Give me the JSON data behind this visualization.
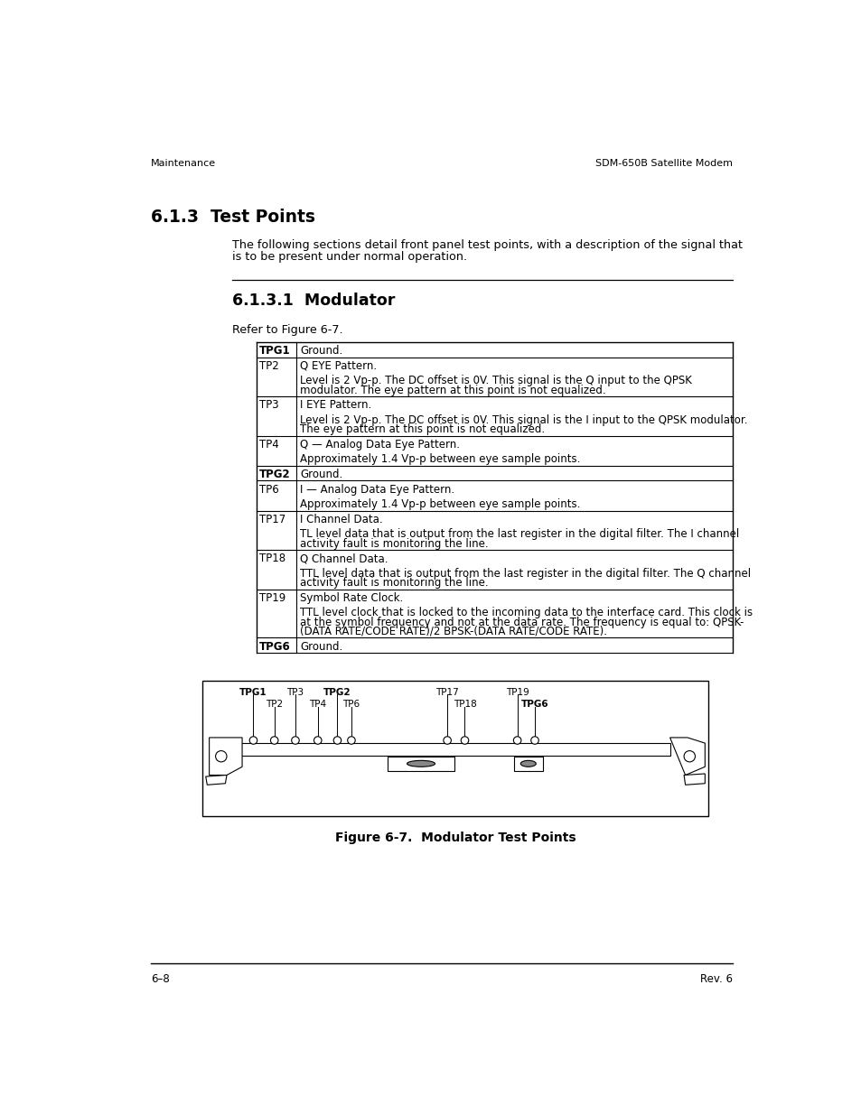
{
  "header_left": "Maintenance",
  "header_right": "SDM-650B Satellite Modem",
  "section_title": "6.1.3  Test Points",
  "intro_text_1": "The following sections detail front panel test points, with a description of the signal that",
  "intro_text_2": "is to be present under normal operation.",
  "subsection_title": "6.1.3.1  Modulator",
  "refer_text": "Refer to Figure 6-7.",
  "table_rows": [
    {
      "label": "TPG1",
      "label_bold": true,
      "text": "Ground.",
      "text_bold": false,
      "extra": "",
      "extra_blank": false
    },
    {
      "label": "TP2",
      "label_bold": false,
      "text": "Q EYE Pattern.",
      "text_bold": false,
      "extra": "Level is 2 Vp-p. The DC offset is 0V. This signal is the Q input to the QPSK\nmodulator. The eye pattern at this point is not equalized.",
      "extra_blank": true
    },
    {
      "label": "TP3",
      "label_bold": false,
      "text": "I EYE Pattern.",
      "text_bold": false,
      "extra": "Level is 2 Vp-p. The DC offset is 0V. This signal is the I input to the QPSK modulator.\nThe eye pattern at this point is not equalized.",
      "extra_blank": true
    },
    {
      "label": "TP4",
      "label_bold": false,
      "text": "Q — Analog Data Eye Pattern.",
      "text_bold": false,
      "extra": "Approximately 1.4 Vp-p between eye sample points.",
      "extra_blank": true
    },
    {
      "label": "TPG2",
      "label_bold": true,
      "text": "Ground.",
      "text_bold": false,
      "extra": "",
      "extra_blank": false
    },
    {
      "label": "TP6",
      "label_bold": false,
      "text": "I — Analog Data Eye Pattern.",
      "text_bold": false,
      "extra": "Approximately 1.4 Vp-p between eye sample points.",
      "extra_blank": true
    },
    {
      "label": "TP17",
      "label_bold": false,
      "text": "I Channel Data.",
      "text_bold": false,
      "extra": "TL level data that is output from the last register in the digital filter. The I channel\nactivity fault is monitoring the line.",
      "extra_blank": true
    },
    {
      "label": "TP18",
      "label_bold": false,
      "text": "Q Channel Data.",
      "text_bold": false,
      "extra": "TTL level data that is output from the last register in the digital filter. The Q channel\nactivity fault is monitoring the line.",
      "extra_blank": true
    },
    {
      "label": "TP19",
      "label_bold": false,
      "text": "Symbol Rate Clock.",
      "text_bold": false,
      "extra": "TTL level clock that is locked to the incoming data to the interface card. This clock is\nat the symbol frequency and not at the data rate. The frequency is equal to: QPSK-\n(DATA RATE/CODE RATE)/2 BPSK-(DATA RATE/CODE RATE).",
      "extra_blank": true
    },
    {
      "label": "TPG6",
      "label_bold": true,
      "text": "Ground.",
      "text_bold": false,
      "extra": "",
      "extra_blank": false
    }
  ],
  "figure_caption": "Figure 6-7.  Modulator Test Points",
  "footer_left": "6–8",
  "footer_right": "Rev. 6",
  "bg_color": "#ffffff",
  "text_color": "#000000"
}
